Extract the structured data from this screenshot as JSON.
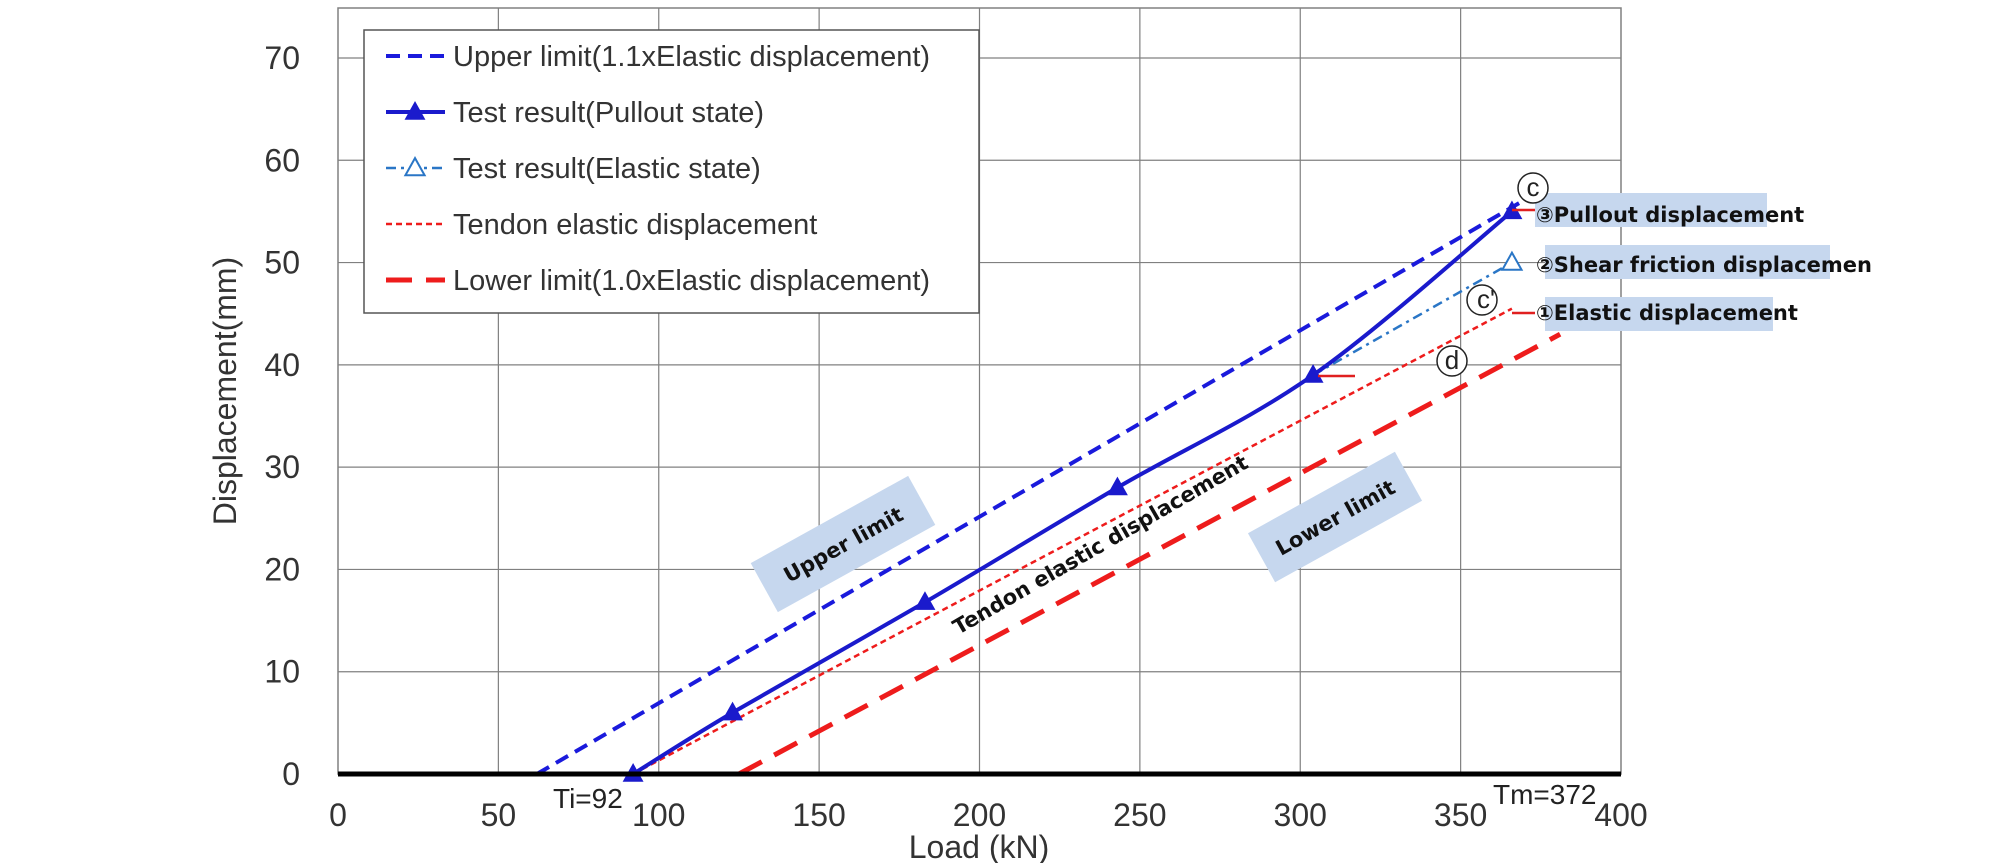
{
  "chart_data": {
    "type": "line",
    "xlabel": "Load (kN)",
    "ylabel": "Displacement(mm)",
    "xlim": [
      0,
      400
    ],
    "ylim": [
      0,
      75
    ],
    "x_ticks": [
      "0",
      "50",
      "100",
      "150",
      "200",
      "250",
      "300",
      "350",
      "400"
    ],
    "y_ticks": [
      "0",
      "10",
      "20",
      "30",
      "40",
      "50",
      "60",
      "70"
    ],
    "grid": true,
    "legend_position": "top-left",
    "series": [
      {
        "name": "Upper limit(1.1xElastic displacement)",
        "color": "#1a1adc",
        "style": "dashed",
        "marker": "none",
        "points": [
          [
            62,
            0
          ],
          [
            372,
            56.5
          ]
        ]
      },
      {
        "name": "Test result(Pullout state)",
        "color": "#1a1acc",
        "style": "solid",
        "marker": "filled-triangle",
        "points": [
          [
            92,
            0
          ],
          [
            123,
            6
          ],
          [
            183,
            16.8
          ],
          [
            243,
            28
          ],
          [
            304,
            39
          ],
          [
            366,
            55
          ]
        ]
      },
      {
        "name": "Test result(Elastic state)",
        "color": "#2a76c6",
        "style": "dash-dot",
        "marker": "open-triangle",
        "points": [
          [
            304,
            39
          ],
          [
            366,
            50
          ]
        ]
      },
      {
        "name": "Tendon elastic displacement",
        "color": "#ee1c1c",
        "style": "dotted",
        "marker": "none",
        "points": [
          [
            92,
            0
          ],
          [
            366,
            45.5
          ]
        ]
      },
      {
        "name": "Lower limit(1.0xElastic displacement)",
        "color": "#ee1c1c",
        "style": "long-dashed",
        "marker": "none",
        "points": [
          [
            125,
            0
          ],
          [
            381,
            43
          ]
        ]
      }
    ],
    "annotations": {
      "ti": "Ti=92",
      "tm": "Tm=372",
      "upper_limit_box": "Upper limit",
      "tendon_label": "Tendon elastic displacement",
      "lower_limit_box": "Lower limit",
      "pullout": "③Pullout displacement",
      "shear": "②Shear friction displacemen",
      "elastic": "①Elastic displacement",
      "circle_c_top": "c",
      "circle_c_mid": "c'",
      "circle_d": "d"
    },
    "colors": {
      "label_box_fill": "#c6d7ee",
      "ref_line": "#e02020",
      "grid": "#808080"
    }
  }
}
